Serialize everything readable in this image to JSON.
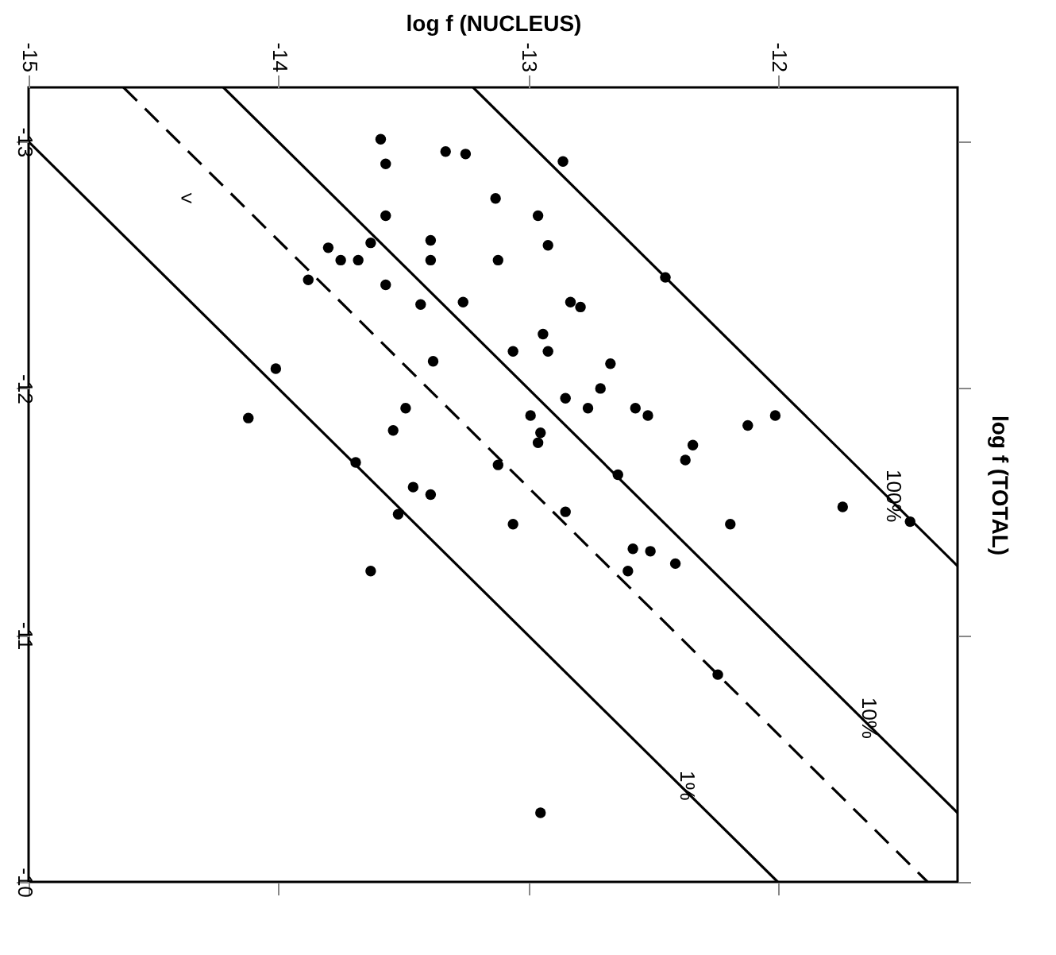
{
  "chart_data": {
    "type": "scatter",
    "xlabel": "log f (NUCLEUS)",
    "ylabel": "log f (TOTAL)",
    "xlim": [
      -15,
      -11.28
    ],
    "ylim": [
      -10,
      -13.22
    ],
    "xticks": [
      -15,
      -14,
      -13,
      -12
    ],
    "yticks": [
      -13,
      -12,
      -11,
      -10
    ],
    "grid": false,
    "series": [
      {
        "color": "#000000",
        "marker": "circle",
        "x": [
          -13.59,
          -13.57,
          -13.33,
          -13.25,
          -13.57,
          -13.39,
          -13.63,
          -13.8,
          -13.75,
          -13.68,
          -13.39,
          -13.57,
          -13.88,
          -13.26,
          -13.43,
          -13.38,
          -14.01,
          -13.49,
          -14.12,
          -13.54,
          -12.86,
          -13.13,
          -12.96,
          -12.92,
          -13.12,
          -12.45,
          -12.83,
          -12.79,
          -12.94,
          -13.06,
          -12.92,
          -12.67,
          -12.71,
          -12.85,
          -12.76,
          -12.57,
          -12.52,
          -12.99,
          -12.12,
          -12.01,
          -12.95,
          -12.96,
          -12.34,
          -12.37,
          -13.12,
          -12.64,
          -11.74,
          -11.47,
          -12.85,
          -13.06,
          -12.19,
          -12.58,
          -12.51,
          -12.41,
          -12.6,
          -12.24,
          -13.69,
          -13.46,
          -13.39,
          -13.52,
          -13.63,
          -12.95
        ],
        "values": [
          -13.01,
          -12.91,
          -12.96,
          -12.95,
          -12.7,
          -12.6,
          -12.59,
          -12.57,
          -12.52,
          -12.52,
          -12.52,
          -12.42,
          -12.44,
          -12.35,
          -12.34,
          -12.11,
          -12.08,
          -11.92,
          -11.88,
          -11.83,
          -12.92,
          -12.77,
          -12.7,
          -12.58,
          -12.52,
          -12.45,
          -12.35,
          -12.33,
          -12.22,
          -12.15,
          -12.15,
          -12.1,
          -12.0,
          -11.96,
          -11.92,
          -11.92,
          -11.89,
          -11.89,
          -11.85,
          -11.89,
          -11.82,
          -11.78,
          -11.77,
          -11.71,
          -11.69,
          -11.65,
          -11.52,
          -11.46,
          -11.5,
          -11.45,
          -11.45,
          -11.35,
          -11.34,
          -11.29,
          -11.26,
          -10.84,
          -11.7,
          -11.6,
          -11.57,
          -11.49,
          -11.26,
          -10.28
        ]
      },
      {
        "type": "line",
        "name": "100%",
        "color": "#000000",
        "line_style": "solid",
        "x": [
          -13.22,
          -11.28
        ],
        "values": [
          -13.22,
          -11.28
        ]
      },
      {
        "type": "line",
        "name": "10%",
        "color": "#000000",
        "line_style": "solid",
        "x": [
          -14.22,
          -11.28
        ],
        "values": [
          -13.22,
          -10.28
        ]
      },
      {
        "type": "line",
        "color": "#000000",
        "line_style": "dashed",
        "x": [
          -14.62,
          -11.4
        ],
        "values": [
          -13.22,
          -10
        ]
      },
      {
        "type": "line",
        "name": "1%",
        "color": "#000000",
        "line_style": "solid",
        "x": [
          -15,
          -12
        ],
        "values": [
          -13,
          -10
        ]
      }
    ],
    "annotations": [
      "<"
    ]
  }
}
